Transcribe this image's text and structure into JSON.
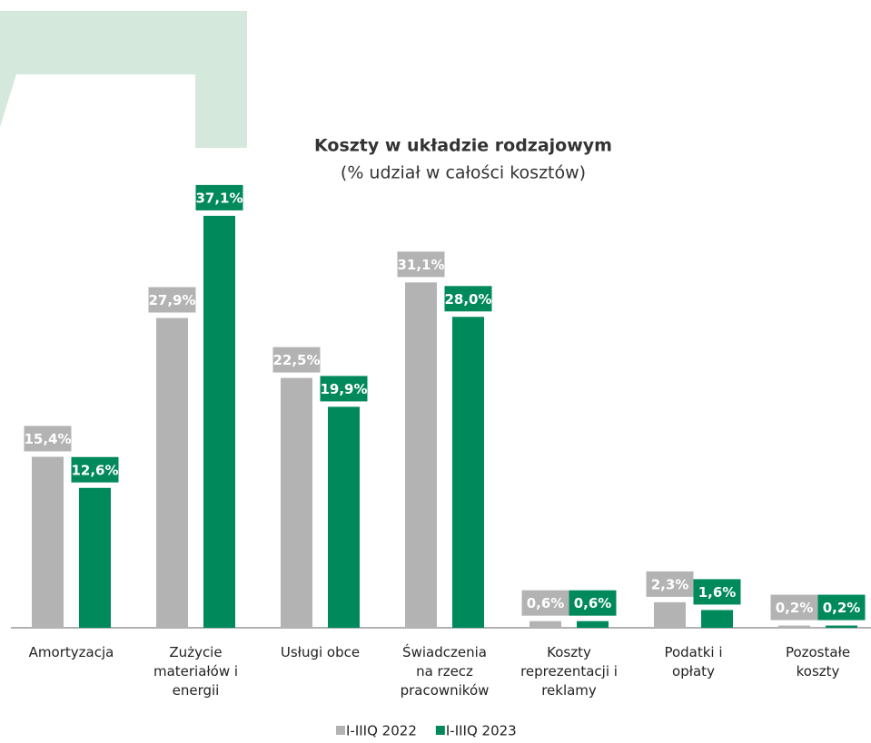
{
  "chart_data": {
    "type": "bar",
    "title": "Koszty w układzie rodzajowym",
    "subtitle": "(% udział w całości kosztów)",
    "categories": [
      "Amortyzacja",
      "Zużycie\nmateriałów i\nenergii",
      "Usługi obce",
      "Świadczenia\nna rzecz\npracowników",
      "Koszty\nreprezentacji i\nreklamy",
      "Podatki i\nopłaty",
      "Pozostałe\nkoszty"
    ],
    "series": [
      {
        "name": "I-IIIQ 2022",
        "color": "#b3b3b3",
        "values": [
          15.4,
          27.9,
          22.5,
          31.1,
          0.6,
          2.3,
          0.2
        ],
        "value_labels": [
          "15,4%",
          "27,9%",
          "22,5%",
          "31,1%",
          "0,6%",
          "2,3%",
          "0,2%"
        ]
      },
      {
        "name": "I-IIIQ 2023",
        "color": "#00895a",
        "values": [
          12.6,
          37.1,
          19.9,
          28.0,
          0.6,
          1.6,
          0.2
        ],
        "value_labels": [
          "12,6%",
          "37,1%",
          "19,9%",
          "28,0%",
          "0,6%",
          "1,6%",
          "0,2%"
        ]
      }
    ]
  }
}
